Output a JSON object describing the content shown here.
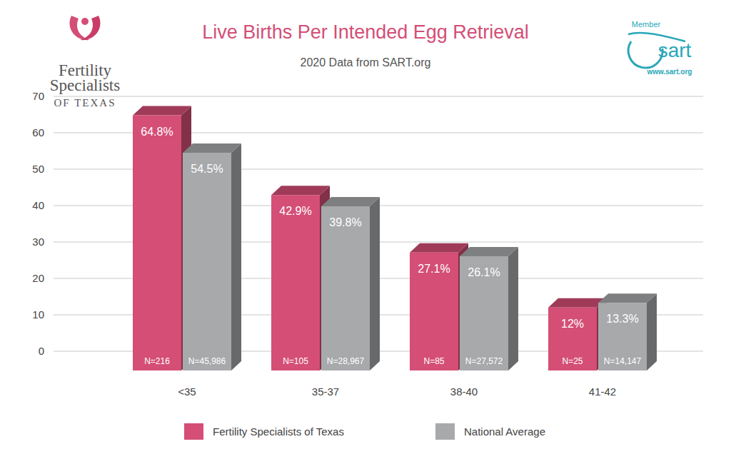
{
  "chart_data": {
    "type": "bar",
    "title": "Live Births Per Intended Egg Retrieval",
    "subtitle": "2020 Data from SART.org",
    "categories": [
      "<35",
      "35-37",
      "38-40",
      "41-42"
    ],
    "series": [
      {
        "name": "Fertility Specialists of Texas",
        "color": "#d44e76",
        "values": [
          64.8,
          42.9,
          27.1,
          12
        ],
        "value_labels": [
          "64.8%",
          "42.9%",
          "27.1%",
          "12%"
        ],
        "n_labels": [
          "N=216",
          "N=105",
          "N=85",
          "N=25"
        ]
      },
      {
        "name": "National Average",
        "color": "#a7a9ab",
        "values": [
          54.5,
          39.8,
          26.1,
          13.3
        ],
        "value_labels": [
          "54.5%",
          "39.8%",
          "26.1%",
          "13.3%"
        ],
        "n_labels": [
          "N=45,986",
          "N=28,967",
          "N=27,572",
          "N=14,147"
        ]
      }
    ],
    "ylim": [
      0,
      70
    ],
    "yticks": [
      0,
      10,
      20,
      30,
      40,
      50,
      60,
      70
    ],
    "grid": true,
    "legend": "bottom",
    "data_labels": true,
    "annotations": [
      "Fertility",
      "Specialists",
      "OF TEXAS",
      "Member",
      "sart",
      "www.sart.org"
    ]
  }
}
